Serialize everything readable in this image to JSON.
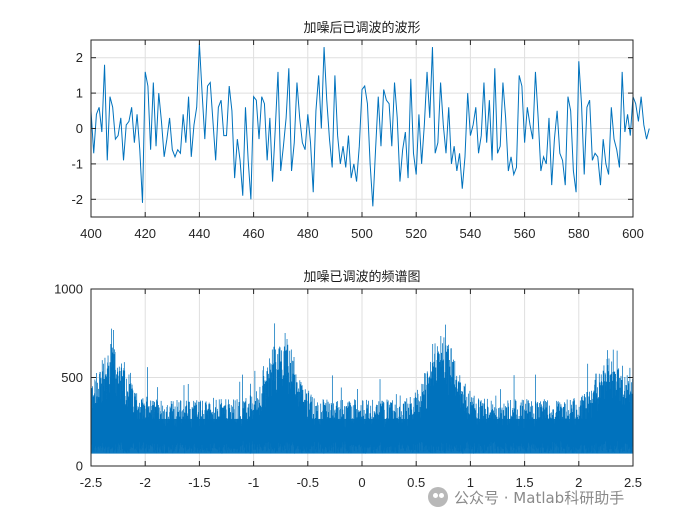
{
  "watermark": {
    "text": "公众号 · Matlab科研助手",
    "icon": "wechat-icon"
  },
  "chart_data": [
    {
      "type": "line",
      "title": "加噪后已调波的波形",
      "xlabel": "",
      "ylabel": "",
      "xlim": [
        400,
        600
      ],
      "ylim": [
        -2.5,
        2.5
      ],
      "xticks": [
        400,
        420,
        440,
        460,
        480,
        500,
        520,
        540,
        560,
        580,
        600
      ],
      "yticks": [
        -2,
        -1,
        0,
        1,
        2
      ],
      "grid": true,
      "color": "#0072bd",
      "x_start": 400,
      "x_step": 1,
      "y": [
        0.5,
        -0.7,
        0.4,
        0.6,
        -0.1,
        1.8,
        -0.9,
        0.9,
        0.6,
        -0.3,
        -0.2,
        0.3,
        -0.9,
        0.1,
        0.2,
        0.6,
        -0.4,
        0.4,
        -0.6,
        -2.1,
        1.6,
        1.2,
        -0.6,
        1.3,
        -0.5,
        1.0,
        0.2,
        -0.8,
        -0.3,
        0.3,
        -0.6,
        -0.8,
        -0.6,
        -0.7,
        0.4,
        -0.4,
        0.9,
        -0.8,
        0.1,
        0.6,
        2.4,
        1.0,
        -0.3,
        1.2,
        1.3,
        0.2,
        -0.9,
        0.6,
        0.8,
        -0.2,
        -0.2,
        1.2,
        0.5,
        -1.4,
        -0.3,
        -0.9,
        -1.9,
        0.6,
        -0.9,
        -2.0,
        0.9,
        0.8,
        -0.3,
        0.9,
        0.7,
        -0.9,
        0.3,
        -1.5,
        0.0,
        1.6,
        -1.2,
        -0.5,
        0.3,
        1.7,
        -1.2,
        -0.4,
        1.3,
        0.3,
        -0.4,
        -0.6,
        0.4,
        -0.4,
        -1.8,
        0.5,
        1.5,
        0.0,
        2.3,
        0.8,
        -0.3,
        -1.1,
        1.5,
        -0.2,
        -1.0,
        -0.5,
        -1.1,
        -0.2,
        -1.4,
        -1.0,
        -1.5,
        -0.5,
        1.1,
        1.2,
        0.7,
        -1.0,
        -2.2,
        -0.6,
        0.9,
        -0.5,
        1.1,
        0.8,
        0.7,
        -0.5,
        1.3,
        0.3,
        -1.5,
        -0.6,
        -0.1,
        -1.4,
        1.4,
        -0.7,
        -1.3,
        0.4,
        -1.0,
        0.1,
        1.6,
        0.3,
        2.3,
        -0.7,
        -0.4,
        1.3,
        0.1,
        -0.7,
        0.6,
        -1.0,
        -0.5,
        -1.2,
        -0.7,
        -1.7,
        -0.8,
        1.0,
        -0.2,
        0.1,
        0.6,
        -0.7,
        -0.2,
        1.3,
        -0.4,
        0.8,
        -0.9,
        1.7,
        -0.7,
        -0.5,
        1.3,
        0.3,
        -1.2,
        -0.8,
        -1.3,
        -1.1,
        1.5,
        1.2,
        -0.4,
        0.6,
        0.1,
        -0.3,
        1.6,
        0.3,
        -1.2,
        -0.8,
        -1.0,
        0.3,
        -1.6,
        -0.3,
        0.5,
        -0.7,
        -0.9,
        -1.6,
        0.9,
        0.5,
        -1.2,
        -1.8,
        1.9,
        0.7,
        -1.3,
        0.6,
        0.8,
        -0.9,
        -0.7,
        -0.8,
        -1.6,
        -0.3,
        -1.0,
        -1.3,
        0.6,
        -0.3,
        -0.6,
        -1.1,
        1.6,
        -0.1,
        0.4,
        -0.2,
        0.9,
        0.7,
        0.2,
        0.9,
        0.1,
        -0.3,
        0.0
      ]
    },
    {
      "type": "area",
      "title": "加噪已调波的频谱图",
      "xlabel": "",
      "ylabel": "",
      "xlim": [
        -2.5,
        2.5
      ],
      "ylim": [
        0,
        1000
      ],
      "xticks": [
        -2.5,
        -2,
        -1.5,
        -1,
        -0.5,
        0,
        0.5,
        1,
        1.5,
        2,
        2.5
      ],
      "xticklabels": [
        "-2.5",
        "-2",
        "-1.5",
        "-1",
        "-0.5",
        "0",
        "0.5",
        "1",
        "1.5",
        "2",
        "2.5"
      ],
      "yticks": [
        0,
        500,
        1000
      ],
      "grid": true,
      "color": "#0072bd",
      "baseline_band": [
        70,
        280
      ],
      "spectral_peaks": [
        {
          "f": -2.3,
          "peak": 620
        },
        {
          "f": -0.75,
          "peak": 720
        },
        {
          "f": 0.75,
          "peak": 720
        },
        {
          "f": 2.3,
          "peak": 600
        }
      ]
    }
  ]
}
